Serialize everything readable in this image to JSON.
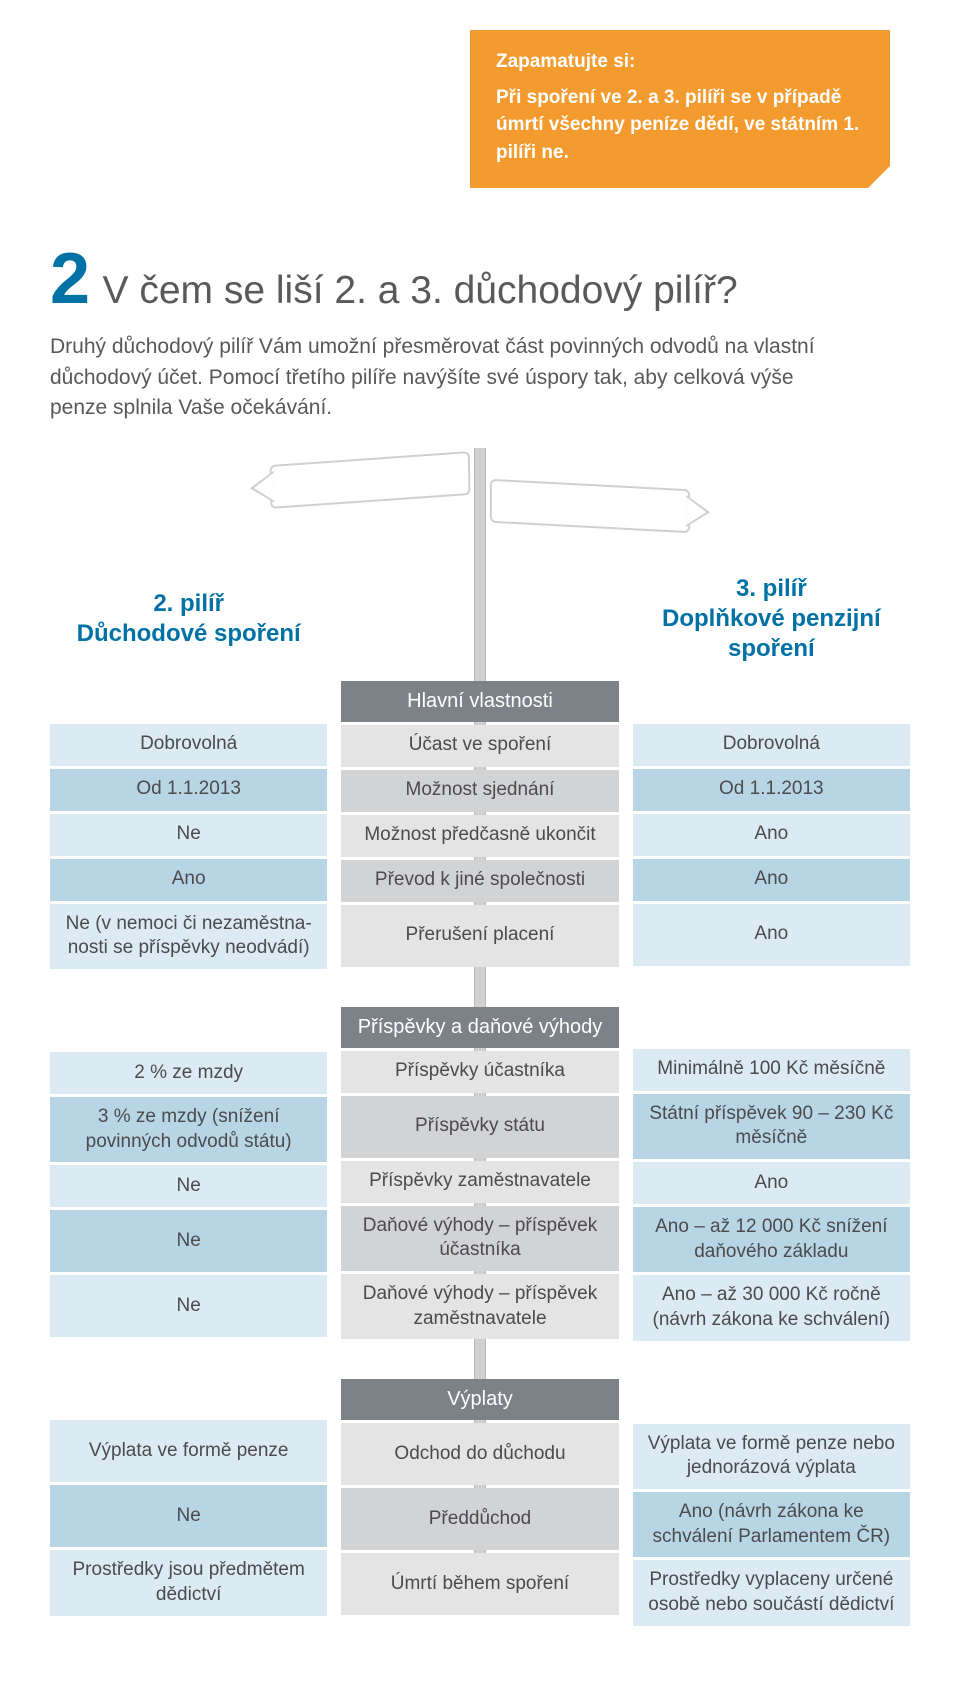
{
  "callout": {
    "title": "Zapamatujte si:",
    "body": "Při spoření ve 2. a 3. pilíři se v případě úmrtí všechny peníze dědí, ve státním 1. pilíři ne."
  },
  "section": {
    "number": "2",
    "title": "V čem se liší 2. a 3. důchodový pilíř?",
    "intro": "Druhý důchodový pilíř Vám umožní přesměrovat část povinných odvodů na vlastní důchodový účet. Pomocí třetího pilíře navýšíte své úspory tak, aby celková výše penze splnila Vaše očekávání."
  },
  "columns": {
    "left": "2. pilíř\nDůchodové spoření",
    "right": "3. pilíř\nDoplňkové penzijní spoření"
  },
  "groups": [
    {
      "header": "Hlavní vlastnosti",
      "rows": [
        {
          "left": "Dobrovolná",
          "mid": "Účast ve spoření",
          "right": "Dobrovolná",
          "tall": false
        },
        {
          "left": "Od 1.1.2013",
          "mid": "Možnost sjednání",
          "right": "Od 1.1.2013",
          "tall": false
        },
        {
          "left": "Ne",
          "mid": "Možnost předčasně ukončit",
          "right": "Ano",
          "tall": false
        },
        {
          "left": "Ano",
          "mid": "Převod k jiné společnosti",
          "right": "Ano",
          "tall": false
        },
        {
          "left": "Ne (v nemoci či nezaměstna­nosti se příspěvky neodvádí)",
          "mid": "Přerušení placení",
          "right": "Ano",
          "tall": true
        }
      ]
    },
    {
      "header": "Příspěvky a daňové výhody",
      "rows": [
        {
          "left": "2 % ze mzdy",
          "mid": "Příspěvky účastníka",
          "right": "Minimálně 100 Kč měsíčně",
          "tall": false
        },
        {
          "left": "3 % ze mzdy (snížení povinných odvodů státu)",
          "mid": "Příspěvky státu",
          "right": "Státní příspěvek 90 – 230 Kč měsíčně",
          "tall": true
        },
        {
          "left": "Ne",
          "mid": "Příspěvky zaměstnavatele",
          "right": "Ano",
          "tall": false
        },
        {
          "left": "Ne",
          "mid": "Daňové výhody – příspěvek účastníka",
          "right": "Ano – až 12 000 Kč snížení daňového základu",
          "tall": true
        },
        {
          "left": "Ne",
          "mid": "Daňové výhody – příspěvek zaměstnavatele",
          "right": "Ano – až 30 000 Kč ročně (návrh zákona ke schválení)",
          "tall": true
        }
      ]
    },
    {
      "header": "Výplaty",
      "rows": [
        {
          "left": "Výplata ve formě penze",
          "mid": "Odchod do důchodu",
          "right": "Výplata ve formě penze nebo jednorázová výplata",
          "tall": true
        },
        {
          "left": "Ne",
          "mid": "Předdůchod",
          "right": "Ano (návrh zákona ke schválení Parlamentem ČR)",
          "tall": true
        },
        {
          "left": "Prostředky jsou předmětem dědictví",
          "mid": "Úmrtí během spoření",
          "right": "Prostředky vyplaceny určené osobě nebo součástí dědictví",
          "tall": true
        }
      ]
    }
  ],
  "colors": {
    "accent_orange": "#f39b2f",
    "accent_blue": "#0071a5",
    "side_light": "#dbeaf3",
    "side_dark": "#b8d5e6",
    "mid_light": "#e4e4e4",
    "mid_dark": "#d2d3d4",
    "header_gray": "#7c8287"
  }
}
